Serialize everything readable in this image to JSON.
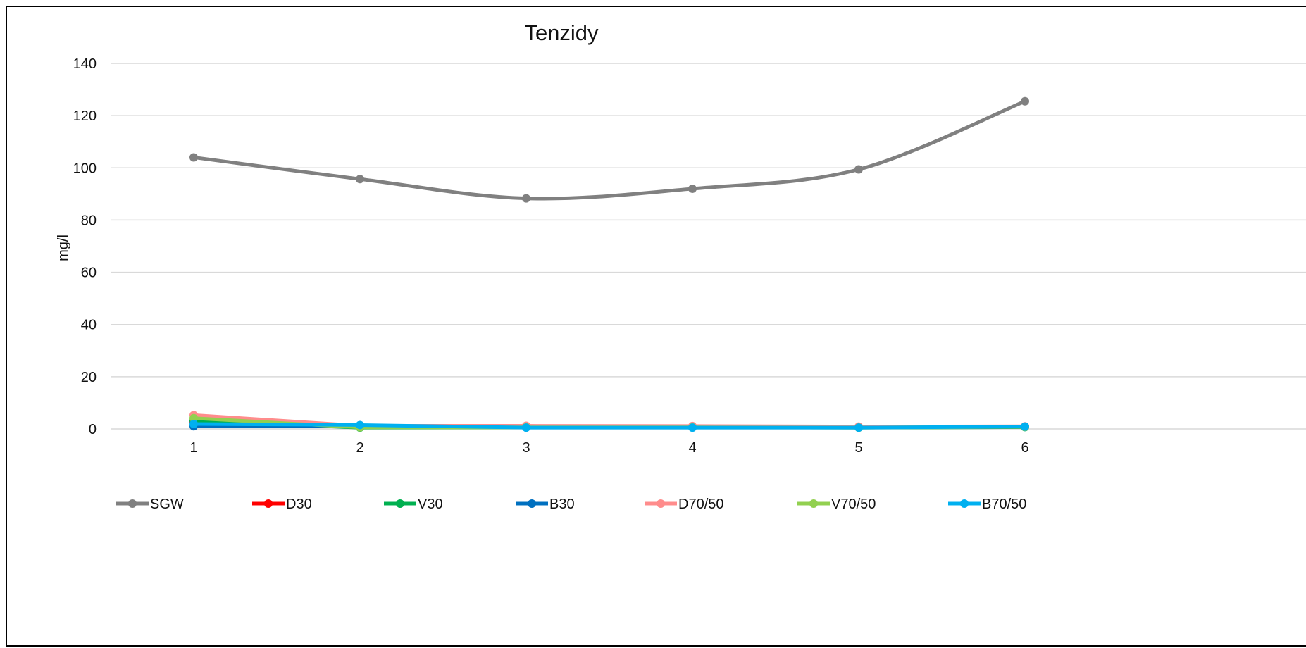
{
  "chart_data": {
    "type": "line",
    "title": "Tenzidy",
    "xlabel": "",
    "ylabel": "mg/l",
    "x": [
      1,
      2,
      3,
      4,
      5,
      6
    ],
    "ylim": [
      0,
      140
    ],
    "yticks": [
      0,
      20,
      40,
      60,
      80,
      100,
      120,
      140
    ],
    "grid": "horizontal",
    "legend_position": "bottom",
    "series": [
      {
        "name": "SGW",
        "color": "#808080",
        "values": [
          104.0,
          95.7,
          88.3,
          92.0,
          99.4,
          125.5
        ],
        "smooth": true
      },
      {
        "name": "D30",
        "color": "#ff0000",
        "values": [
          2.6,
          0.8,
          0.7,
          0.7,
          0.6,
          0.8
        ]
      },
      {
        "name": "V30",
        "color": "#00b050",
        "values": [
          3.2,
          0.5,
          0.6,
          0.6,
          0.5,
          0.7
        ]
      },
      {
        "name": "B30",
        "color": "#0070c0",
        "values": [
          1.0,
          1.3,
          0.6,
          0.6,
          0.6,
          0.8
        ]
      },
      {
        "name": "D70/50",
        "color": "#ff8c8c",
        "values": [
          5.3,
          1.2,
          1.2,
          1.1,
          0.9,
          1.0
        ]
      },
      {
        "name": "V70/50",
        "color": "#92d050",
        "values": [
          4.1,
          0.6,
          0.6,
          0.6,
          0.5,
          0.8
        ]
      },
      {
        "name": "B70/50",
        "color": "#00b0f0",
        "values": [
          1.9,
          1.5,
          0.5,
          0.5,
          0.5,
          0.9
        ]
      }
    ]
  }
}
